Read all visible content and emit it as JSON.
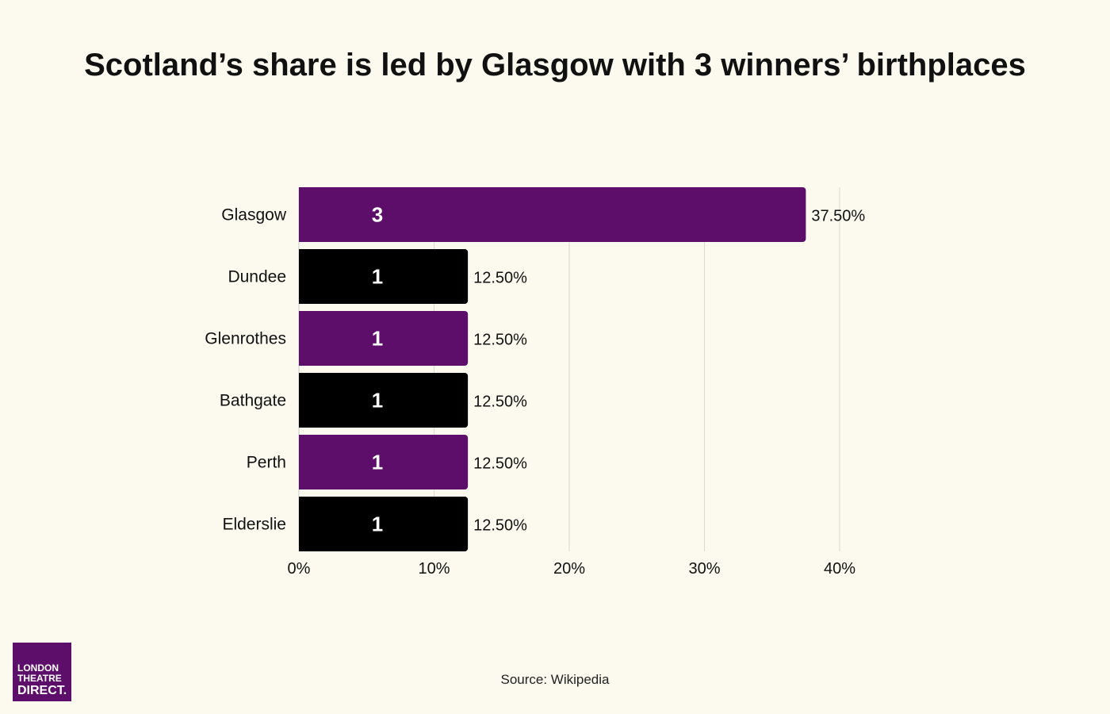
{
  "title": "Scotland’s share is led by Glasgow with 3 winners’ birthplaces",
  "source": "Source: Wikipedia",
  "logo": {
    "line1": "LONDON",
    "line2": "THEATRE",
    "line3": "DIRECT."
  },
  "colors": {
    "purple": "#5d0e6b",
    "black": "#000000",
    "background": "#fcf9ef",
    "gridline": "#dddad0"
  },
  "chart_data": {
    "type": "bar",
    "orientation": "horizontal",
    "categories": [
      "Glasgow",
      "Dundee",
      "Glenrothes",
      "Bathgate",
      "Perth",
      "Elderslie"
    ],
    "values": [
      37.5,
      12.5,
      12.5,
      12.5,
      12.5,
      12.5
    ],
    "counts": [
      3,
      1,
      1,
      1,
      1,
      1
    ],
    "value_labels": [
      "37.50%",
      "12.50%",
      "12.50%",
      "12.50%",
      "12.50%",
      "12.50%"
    ],
    "bar_colors": [
      "#5d0e6b",
      "#000000",
      "#5d0e6b",
      "#000000",
      "#5d0e6b",
      "#000000"
    ],
    "xlim": [
      0,
      40
    ],
    "xticks": [
      0,
      10,
      20,
      30,
      40
    ],
    "xtick_labels": [
      "0%",
      "10%",
      "20%",
      "30%",
      "40%"
    ],
    "grid": true,
    "title": "Scotland’s share is led by Glasgow with 3 winners’ birthplaces",
    "xlabel": "",
    "ylabel": ""
  }
}
